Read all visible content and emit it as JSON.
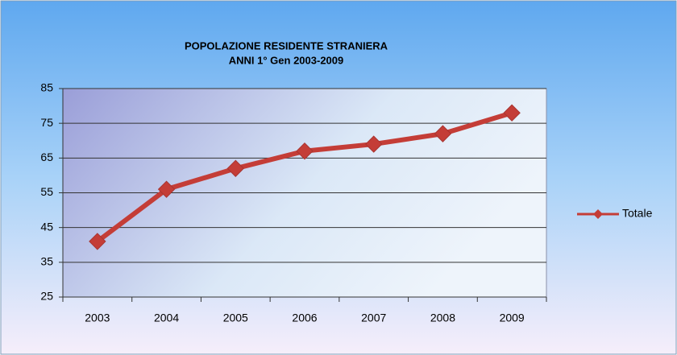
{
  "chart_data": {
    "type": "line",
    "title": "POPOLAZIONE RESIDENTE STRANIERA",
    "subtitle": "ANNI 1° Gen 2003-2009",
    "categories": [
      "2003",
      "2004",
      "2005",
      "2006",
      "2007",
      "2008",
      "2009"
    ],
    "series": [
      {
        "name": "Totale",
        "color": "#c43d37",
        "values": [
          41,
          56,
          62,
          67,
          69,
          72,
          78
        ]
      }
    ],
    "ylim": [
      25,
      85
    ],
    "yticks": [
      25,
      35,
      45,
      55,
      65,
      75,
      85
    ],
    "grid": true,
    "legend": "right"
  }
}
